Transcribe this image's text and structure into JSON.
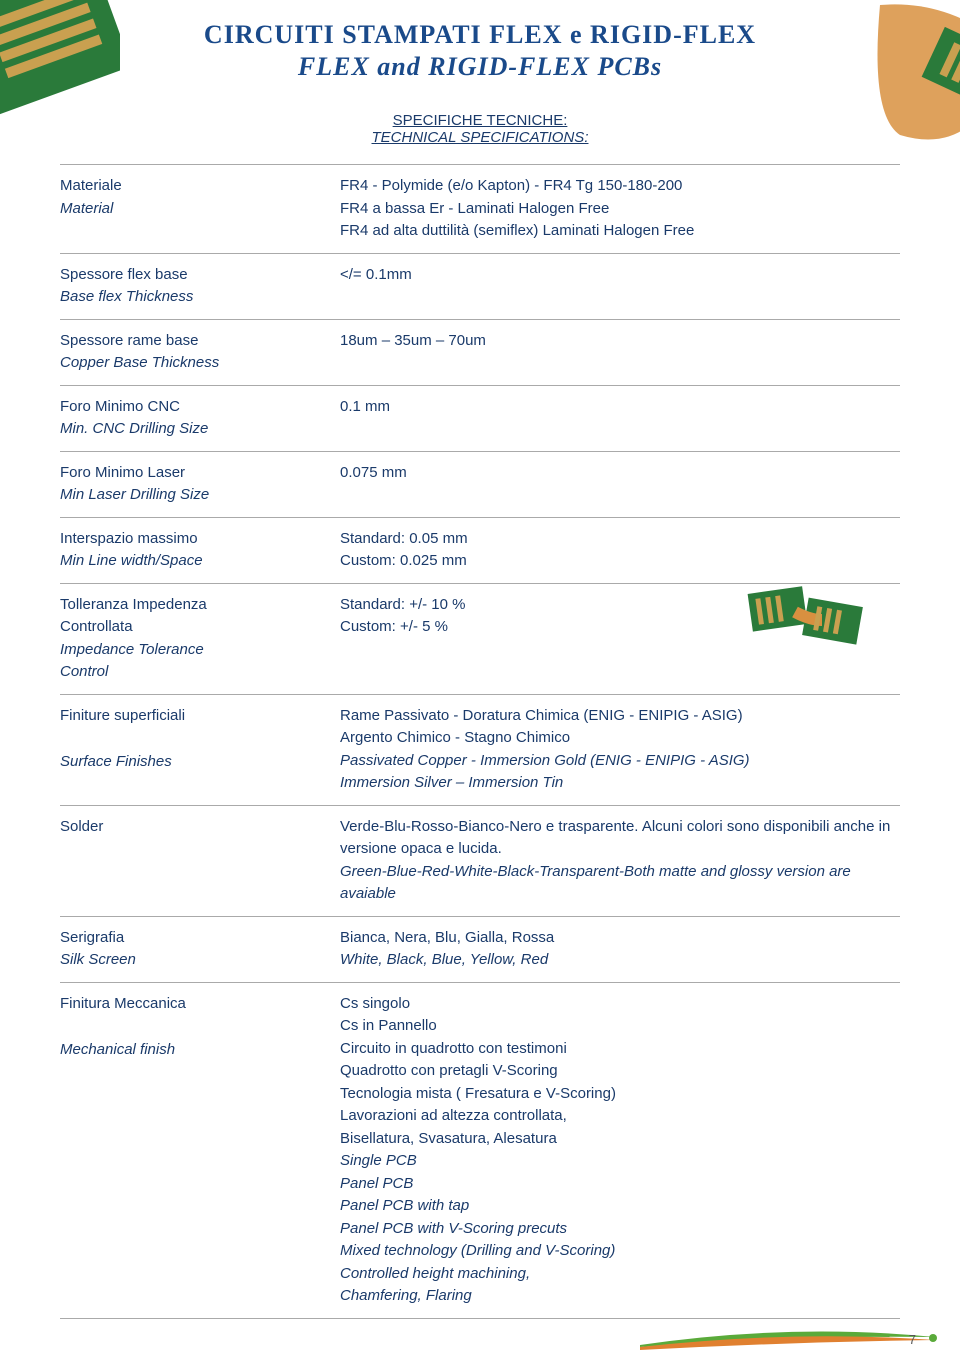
{
  "header": {
    "title_it": "CIRCUITI STAMPATI FLEX e RIGID-FLEX",
    "title_en": "FLEX and RIGID-FLEX PCBs",
    "section_it": "SPECIFICHE TECNICHE:",
    "section_en": "TECHNICAL SPECIFICATIONS:"
  },
  "colors": {
    "pcb_green": "#2a7a3a",
    "pcb_amber": "#d89040",
    "title_blue": "#1a4a8a",
    "text_blue": "#1a3a6a",
    "swoosh_green": "#5aaa3a",
    "swoosh_orange": "#e08030",
    "gold_trace": "#c9a050"
  },
  "specs": [
    {
      "label_it": "Materiale",
      "label_en": "Material",
      "value_lines": [
        "FR4 - Polymide (e/o Kapton) - FR4 Tg 150-180-200",
        "FR4 a bassa Er - Laminati Halogen Free",
        "FR4 ad alta duttilità (semiflex) Laminati Halogen Free"
      ]
    },
    {
      "label_it": "Spessore flex base",
      "label_en": "Base flex Thickness",
      "value_lines": [
        "</= 0.1mm"
      ]
    },
    {
      "label_it": "Spessore rame base",
      "label_en": "Copper Base Thickness",
      "value_lines": [
        "18um – 35um – 70um"
      ]
    },
    {
      "label_it": "Foro Minimo CNC",
      "label_en": "Min. CNC Drilling Size",
      "value_lines": [
        "0.1 mm"
      ]
    },
    {
      "label_it": "Foro Minimo Laser",
      "label_en": "Min Laser Drilling Size",
      "value_lines": [
        "0.075 mm"
      ]
    },
    {
      "label_it": "Interspazio massimo",
      "label_en": "Min Line width/Space",
      "value_lines": [
        "Standard: 0.05 mm",
        "Custom: 0.025 mm"
      ]
    },
    {
      "label_it_multi": [
        "Tolleranza Impedenza",
        "Controllata"
      ],
      "label_en_multi": [
        "Impedance Tolerance",
        "Control"
      ],
      "value_lines": [
        "Standard: +/- 10 %",
        "Custom: +/- 5 %"
      ],
      "has_image": true
    },
    {
      "label_it": "Finiture superficiali",
      "label_en": "Surface Finishes",
      "label_en_spaced": true,
      "value_it_lines": [
        "Rame Passivato - Doratura Chimica (ENIG - ENIPIG - ASIG)",
        "Argento Chimico - Stagno Chimico"
      ],
      "value_en_lines": [
        "Passivated Copper - Immersion Gold (ENIG - ENIPIG - ASIG)",
        "Immersion Silver – Immersion Tin"
      ]
    },
    {
      "label_it": "Solder",
      "value_it_lines": [
        "Verde-Blu-Rosso-Bianco-Nero e trasparente. Alcuni colori sono disponibili anche in versione opaca e lucida."
      ],
      "value_en_lines": [
        "Green-Blue-Red-White-Black-Transparent-Both matte and glossy version are avaiable"
      ]
    },
    {
      "label_it": "Serigrafia",
      "label_en": "Silk Screen",
      "value_it_lines": [
        "Bianca, Nera, Blu, Gialla, Rossa"
      ],
      "value_en_lines": [
        "White, Black, Blue, Yellow, Red"
      ]
    },
    {
      "label_it": "Finitura Meccanica",
      "label_en": "Mechanical finish",
      "label_en_spaced": true,
      "value_it_lines": [
        "Cs singolo",
        "Cs in Pannello",
        "Circuito in quadrotto con testimoni",
        "Quadrotto con pretagli V-Scoring",
        "Tecnologia mista ( Fresatura e V-Scoring)",
        "Lavorazioni ad altezza controllata,",
        "Bisellatura, Svasatura, Alesatura"
      ],
      "value_en_lines": [
        "Single PCB",
        "Panel PCB",
        "Panel PCB with tap",
        "Panel PCB with V-Scoring precuts",
        "Mixed technology (Drilling and V-Scoring)",
        "Controlled height machining,",
        "Chamfering, Flaring"
      ]
    }
  ],
  "page_number": "7"
}
